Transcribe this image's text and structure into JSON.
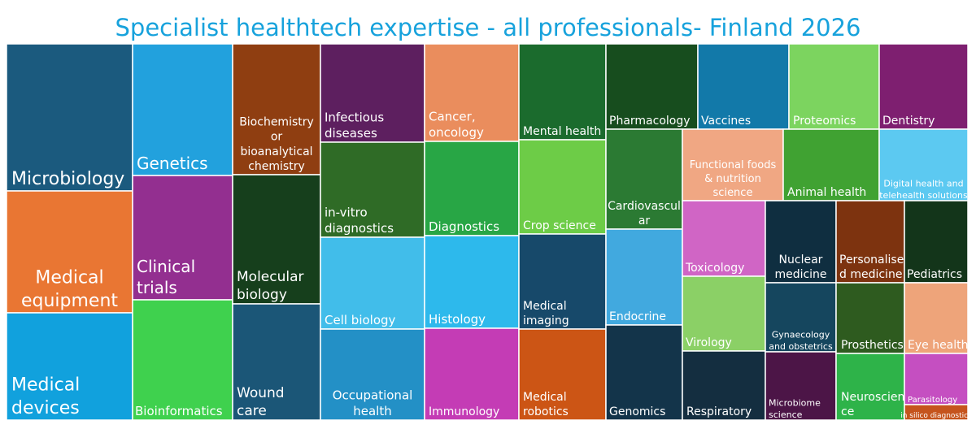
{
  "chart_data": {
    "type": "treemap",
    "title": "Specialist healthtech expertise - all professionals- Finland 2026",
    "tiles": [
      {
        "label": "Microbiology",
        "color": "#1b5a7e"
      },
      {
        "label": "Medical equipment",
        "color": "#e97633"
      },
      {
        "label": "Medical devices",
        "color": "#11a1dd"
      },
      {
        "label": "Genetics",
        "color": "#22a1dd"
      },
      {
        "label": "Clinical trials",
        "color": "#932f90"
      },
      {
        "label": "Bioinformatics",
        "color": "#3fd14e"
      },
      {
        "label": "Biochemistry or bioanalytical chemistry",
        "color": "#8f3e11"
      },
      {
        "label": "Molecular biology",
        "color": "#163f1c"
      },
      {
        "label": "Wound care",
        "color": "#1b5677"
      },
      {
        "label": "Infectious diseases",
        "color": "#5d1f5f"
      },
      {
        "label": "in-vitro diagnostics",
        "color": "#2f6b26"
      },
      {
        "label": "Cell biology",
        "color": "#41bdea"
      },
      {
        "label": "Occupational health",
        "color": "#2390c6"
      },
      {
        "label": "Cancer, oncology",
        "color": "#ea8d5d"
      },
      {
        "label": "Diagnostics",
        "color": "#28a645"
      },
      {
        "label": "Histology",
        "color": "#2db9ec"
      },
      {
        "label": "Immunology",
        "color": "#c43cb5"
      },
      {
        "label": "Mental health",
        "color": "#1b6b2d"
      },
      {
        "label": "Crop science",
        "color": "#6dcc47"
      },
      {
        "label": "Medical imaging",
        "color": "#17496a"
      },
      {
        "label": "Medical robotics",
        "color": "#cc5515"
      },
      {
        "label": "Pharmacology",
        "color": "#174d1e"
      },
      {
        "label": "Cardiovascular",
        "color": "#2b7a33"
      },
      {
        "label": "Endocrine",
        "color": "#41a9df"
      },
      {
        "label": "Genomics",
        "color": "#13344a"
      },
      {
        "label": "Vaccines",
        "color": "#1279a9"
      },
      {
        "label": "Proteomics",
        "color": "#7cd45f"
      },
      {
        "label": "Dentistry",
        "color": "#7e1f70"
      },
      {
        "label": "Functional foods & nutrition science",
        "color": "#f0a783"
      },
      {
        "label": "Animal health",
        "color": "#40a232"
      },
      {
        "label": "Digital health and telehealth solutions",
        "color": "#5cc9f1"
      },
      {
        "label": "Toxicology",
        "color": "#d065c5"
      },
      {
        "label": "Virology",
        "color": "#8bd066"
      },
      {
        "label": "Respiratory",
        "color": "#142e40"
      },
      {
        "label": "Nuclear medicine",
        "color": "#0f2e40"
      },
      {
        "label": "Gynaecology and obstetrics",
        "color": "#15465e"
      },
      {
        "label": "Microbiome science",
        "color": "#4c1547"
      },
      {
        "label": "Personalised medicine",
        "color": "#7d330f"
      },
      {
        "label": "Prosthetics",
        "color": "#2e5b1f"
      },
      {
        "label": "Neuroscience",
        "color": "#2eb349"
      },
      {
        "label": "Pediatrics",
        "color": "#13351a"
      },
      {
        "label": "Eye health",
        "color": "#eea47a"
      },
      {
        "label": "Parasitology",
        "color": "#c54fc1"
      },
      {
        "label": "in silico diagnostics",
        "color": "#c5541d"
      }
    ]
  }
}
